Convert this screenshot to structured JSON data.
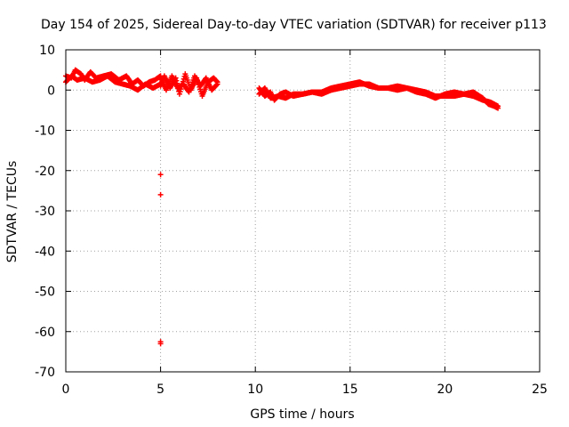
{
  "chart_data": {
    "type": "scatter",
    "title": "Day 154 of 2025, Sidereal Day-to-day VTEC variation (SDTVAR) for receiver p113",
    "xlabel": "GPS time / hours",
    "ylabel": "SDTVAR / TECUs",
    "xlim": [
      0,
      25
    ],
    "ylim": [
      -70,
      10
    ],
    "xticks": [
      0,
      5,
      10,
      15,
      20,
      25
    ],
    "yticks": [
      10,
      0,
      -10,
      -20,
      -30,
      -40,
      -50,
      -60,
      -70
    ],
    "grid": true,
    "colors": {
      "series": "#ff0000",
      "grid": "#a0a0a0",
      "axis": "#000000"
    },
    "series": [
      {
        "name": "SDTVAR",
        "marker": "plus",
        "segments": [
          {
            "x": [
              0.0,
              0.3,
              0.5,
              0.8,
              1.0,
              1.3,
              1.6,
              2.0,
              2.4,
              2.8,
              3.2,
              3.5,
              3.8,
              4.1,
              4.4,
              4.7,
              5.0
            ],
            "y": [
              3.5,
              3.0,
              5.0,
              4.0,
              2.5,
              4.5,
              3.0,
              3.5,
              4.0,
              2.5,
              3.5,
              1.5,
              2.5,
              1.0,
              2.0,
              2.5,
              3.5
            ]
          },
          {
            "x": [
              0.0,
              0.3,
              0.6,
              1.0,
              1.4,
              1.8,
              2.2,
              2.6,
              3.0,
              3.4,
              3.8,
              4.2,
              4.6,
              5.0
            ],
            "y": [
              2.0,
              3.5,
              2.5,
              3.0,
              2.0,
              2.5,
              3.5,
              2.0,
              1.5,
              1.0,
              0.0,
              1.5,
              0.5,
              1.5
            ]
          },
          {
            "x": [
              5.0,
              5.2,
              5.5,
              5.8,
              6.0,
              6.3,
              6.6,
              6.9,
              7.2,
              7.5,
              7.8,
              8.0
            ],
            "y": [
              1.0,
              3.5,
              0.5,
              3.0,
              -1.0,
              4.0,
              0.0,
              3.0,
              -1.5,
              2.0,
              3.0,
              2.0
            ]
          },
          {
            "x": [
              5.0,
              5.3,
              5.6,
              5.9,
              6.2,
              6.5,
              6.8,
              7.1,
              7.4,
              7.7,
              8.0
            ],
            "y": [
              3.0,
              0.0,
              3.5,
              0.5,
              1.5,
              -0.5,
              3.5,
              1.0,
              3.0,
              0.0,
              1.5
            ]
          },
          {
            "x": [
              10.2,
              10.5,
              10.8,
              11.0,
              11.3,
              11.6,
              12.0,
              12.5,
              13.0,
              13.5,
              14.0,
              14.5,
              15.0,
              15.5,
              16.0,
              16.5,
              17.0,
              17.5,
              18.0,
              18.5,
              19.0,
              19.5,
              20.0,
              20.5,
              21.0,
              21.5,
              22.0,
              22.3,
              22.6,
              22.8
            ],
            "y": [
              0.5,
              -1.5,
              -0.5,
              -2.5,
              -1.0,
              -0.5,
              -1.5,
              -1.0,
              -0.5,
              -1.0,
              0.0,
              0.5,
              1.0,
              1.5,
              1.5,
              0.5,
              0.5,
              1.0,
              0.5,
              0.0,
              -0.5,
              -1.5,
              -1.5,
              -1.5,
              -1.0,
              -0.5,
              -2.0,
              -3.5,
              -4.0,
              -4.5
            ]
          },
          {
            "x": [
              10.2,
              10.5,
              10.8,
              11.2,
              11.6,
              12.0,
              12.5,
              13.0,
              13.5,
              14.0,
              14.5,
              15.0,
              15.5,
              16.0,
              16.5,
              17.0,
              17.5,
              18.0,
              18.5,
              19.0,
              19.5,
              20.0,
              20.5,
              21.0,
              21.5,
              22.0,
              22.4,
              22.8
            ],
            "y": [
              -1.0,
              0.5,
              -2.0,
              -1.5,
              -2.0,
              -1.0,
              -1.0,
              -0.5,
              -0.5,
              0.5,
              1.0,
              1.5,
              2.0,
              1.0,
              0.5,
              0.5,
              0.0,
              0.5,
              -0.5,
              -1.0,
              -2.0,
              -1.0,
              -0.5,
              -1.0,
              -1.5,
              -2.5,
              -3.0,
              -4.0
            ]
          }
        ],
        "points": [
          {
            "x": 5.0,
            "y": -21.0
          },
          {
            "x": 5.0,
            "y": -26.0
          },
          {
            "x": 5.0,
            "y": -62.5
          },
          {
            "x": 5.0,
            "y": -63.0
          }
        ]
      }
    ]
  }
}
